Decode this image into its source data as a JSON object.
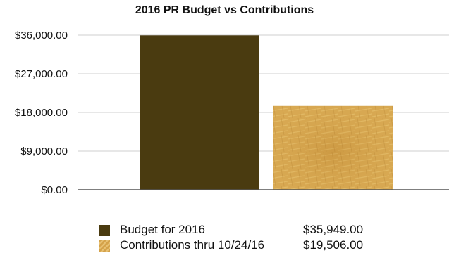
{
  "chart_data": {
    "type": "bar",
    "title": "2016 PR Budget vs Contributions",
    "categories": [
      "Budget for 2016",
      "Contributions thru  10/24/16"
    ],
    "values": [
      35949,
      19506
    ],
    "value_labels": [
      "$35,949.00",
      "$19,506.00"
    ],
    "yticks": [
      0,
      9000,
      18000,
      27000,
      36000
    ],
    "ytick_labels": [
      "$0.00",
      "$9,000.00",
      "$18,000.00",
      "$27,000.00",
      "$36,000.00"
    ],
    "ylim": [
      0,
      36000
    ],
    "xlabel": "",
    "ylabel": "",
    "grid": true,
    "legend_placement": "bottom",
    "colors": [
      "#4a3b10",
      "#d4a24a"
    ]
  }
}
